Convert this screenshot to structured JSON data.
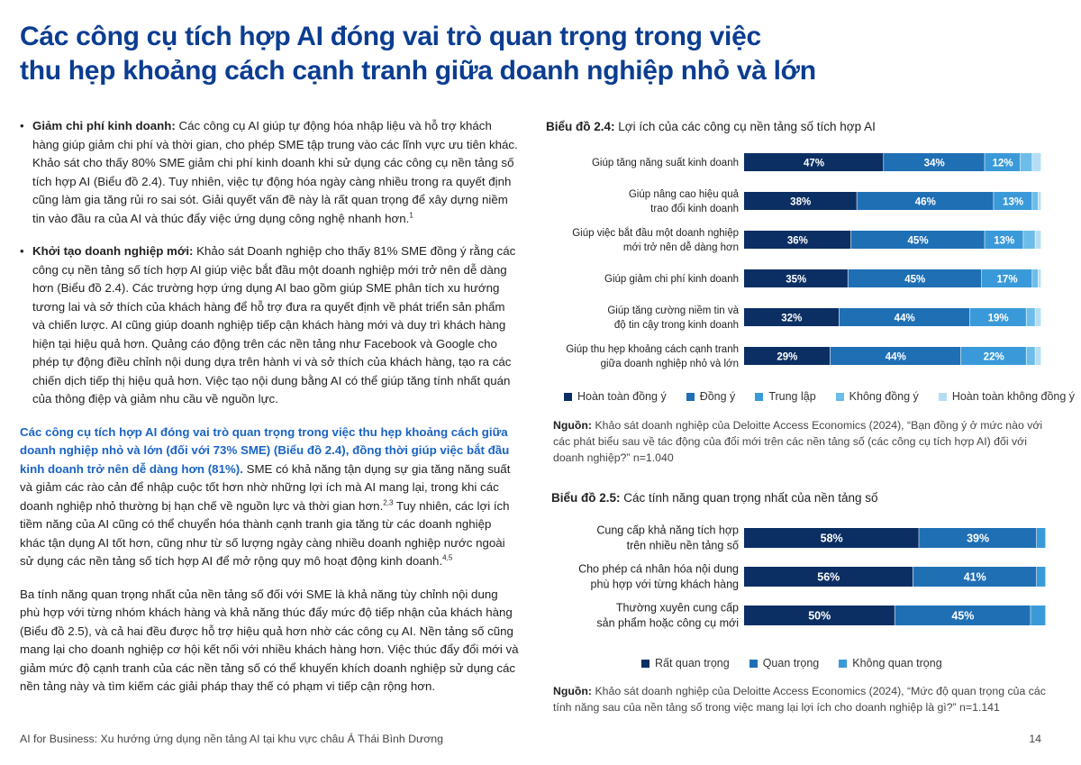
{
  "title": {
    "line1": "Các công cụ tích hợp AI đóng vai trò quan trọng trong việc",
    "line2": "thu hẹp khoảng cách cạnh tranh giữa doanh nghiệp nhỏ và lớn"
  },
  "left": {
    "b1_bold": "Giảm chi phí kinh doanh:",
    "b1_text": " Các công cụ AI giúp tự động hóa nhập liệu và hỗ trợ khách hàng giúp giảm chi phí và thời gian, cho phép SME tập trung vào các lĩnh vực ưu tiên khác. Khảo sát cho thấy 80% SME giảm chi phí kinh doanh khi sử dụng các công cụ nền tảng số tích hợp AI (Biểu đồ 2.4). Tuy nhiên, việc tự động hóa ngày càng nhiều trong ra quyết định cũng làm gia tăng rủi ro sai sót. Giải quyết vấn đề này là rất quan trọng để xây dựng niềm tin vào đầu ra của AI và thúc đẩy việc ứng dụng công nghệ nhanh hơn.",
    "b1_sup": "1",
    "b2_bold": "Khởi tạo doanh nghiệp mới:",
    "b2_text": " Khảo sát Doanh nghiệp cho thấy 81% SME đồng ý rằng các công cụ nền tảng số tích hợp AI giúp việc bắt đầu một doanh nghiệp mới trở nên dễ dàng hơn (Biểu đồ 2.4). Các trường hợp ứng dụng AI bao gồm giúp SME phân tích xu hướng tương lai và sở thích của khách hàng để hỗ trợ đưa ra quyết định về phát triển sản phẩm và chiến lược. AI cũng giúp doanh nghiệp tiếp cận khách hàng mới và duy trì khách hàng hiện tại hiệu quả hơn. Quảng cáo động trên các nền tảng như Facebook và Google cho phép tự động điều chỉnh nội dung dựa trên hành vi và sở thích của khách hàng, tạo ra các chiến dịch tiếp thị hiệu quả hơn. Việc tạo nội dung bằng AI có thể giúp tăng tính nhất quán của thông điệp và giảm nhu cầu về nguồn lực.",
    "p3_highlight": "Các công cụ tích hợp AI đóng vai trò quan trọng trong việc thu hẹp khoảng cách giữa doanh nghiệp nhỏ và lớn (đối với 73% SME) (Biểu đồ 2.4), đồng thời giúp việc bắt đầu kinh doanh trở nên dễ dàng hơn (81%).",
    "p3_text1": " SME có khả năng tận dụng sự gia tăng năng suất và giảm các rào cản để nhập cuộc tốt hơn nhờ những lợi ích mà AI mang lại, trong khi các doanh nghiệp nhỏ thường bị hạn chế về nguồn lực và thời gian hơn.",
    "p3_sup1": "2,3",
    "p3_text2": " Tuy nhiên, các lợi ích tiềm năng của AI cũng có thể chuyển hóa thành cạnh tranh gia tăng từ các doanh nghiệp khác tận dụng AI tốt hơn, cũng như từ số lượng ngày càng nhiều doanh nghiệp nước ngoài sử dụng các nền tảng số tích hợp AI để mở rộng quy mô hoạt động kinh doanh.",
    "p3_sup2": "4,5",
    "p4": "Ba tính năng quan trọng nhất của nền tảng số đối với SME là khả năng tùy chỉnh nội dung phù hợp với từng nhóm khách hàng và khả năng thúc đẩy mức độ tiếp nhận của khách hàng (Biểu đồ 2.5), và cả hai đều được hỗ trợ hiệu quả hơn nhờ các công cụ AI. Nền tảng số cũng mang lại cho doanh nghiệp cơ hội kết nối với nhiều khách hàng hơn. Việc thúc đẩy đổi mới và giảm mức độ cạnh tranh của các nền tảng số có thể khuyến khích doanh nghiệp sử dụng các nền tảng này và tìm kiếm các giải pháp thay thế có phạm vi tiếp cận rộng hơn."
  },
  "chart_data": [
    {
      "type": "bar",
      "orientation": "horizontal-stacked",
      "title_bold": "Biểu đồ 2.4:",
      "title": " Lợi ích của các công cụ nền tảng số tích hợp AI",
      "categories": [
        [
          "Giúp tăng năng suất kinh doanh"
        ],
        [
          "Giúp nâng cao hiệu quả",
          "trao đổi kinh doanh"
        ],
        [
          "Giúp việc bắt đầu một doanh nghiệp",
          "mới trở nên dễ dàng hơn"
        ],
        [
          "Giúp giảm chi phí kinh doanh"
        ],
        [
          "Giúp tăng cường niềm tin và",
          "độ tin cậy trong kinh doanh"
        ],
        [
          "Giúp thu hẹp khoảng cách cạnh tranh",
          "giữa doanh nghiệp nhỏ và lớn"
        ]
      ],
      "series": [
        {
          "name": "Hoàn toàn đồng ý",
          "color": "#0b2f63",
          "values": [
            47,
            38,
            36,
            35,
            32,
            29
          ]
        },
        {
          "name": "Đồng ý",
          "color": "#1f6fb5",
          "values": [
            34,
            46,
            45,
            45,
            44,
            44
          ]
        },
        {
          "name": "Trung lập",
          "color": "#3a9ad9",
          "values": [
            12,
            13,
            13,
            17,
            19,
            22
          ]
        },
        {
          "name": "Không đồng ý",
          "color": "#6cbde9",
          "values": [
            4,
            2,
            4,
            2,
            3,
            3
          ]
        },
        {
          "name": "Hoàn toàn không đồng ý",
          "color": "#b5def5",
          "values": [
            3,
            1,
            2,
            1,
            2,
            2
          ]
        }
      ],
      "labels_shown": 3,
      "xlim": [
        0,
        100
      ],
      "source_bold": "Nguồn:",
      "source": " Khảo sát doanh nghiệp của Deloitte Access Economics (2024), “Bạn đồng ý ở mức nào với các phát biểu sau về tác động của đổi mới trên các nền tảng số (các công cụ tích hợp AI) đối với doanh nghiệp?” n=1.040"
    },
    {
      "type": "bar",
      "orientation": "horizontal-stacked",
      "title_bold": "Biểu đồ 2.5:",
      "title": " Các tính năng quan trọng nhất của nền tảng số",
      "categories": [
        [
          "Cung cấp khả năng tích hợp",
          "trên nhiều nền tảng số"
        ],
        [
          "Cho phép cá nhân hóa nội dung",
          "phù hợp với từng khách hàng"
        ],
        [
          "Thường xuyên cung cấp",
          "sản phẩm hoặc công cụ mới"
        ]
      ],
      "series": [
        {
          "name": "Rất quan trọng",
          "color": "#0b2f63",
          "values": [
            58,
            56,
            50
          ]
        },
        {
          "name": "Quan trọng",
          "color": "#1f6fb5",
          "values": [
            39,
            41,
            45
          ]
        },
        {
          "name": "Không quan trọng",
          "color": "#3a9ad9",
          "values": [
            3,
            3,
            5
          ]
        }
      ],
      "labels_shown": 2,
      "xlim": [
        0,
        100
      ],
      "source_bold": "Nguồn:",
      "source": " Khảo sát doanh nghiệp của Deloitte Access Economics (2024), “Mức độ quan trọng của các tính năng sau của nền tảng số trong việc mang lại lợi ích cho doanh nghiệp là gì?” n=1.141"
    }
  ],
  "footer": {
    "text": "AI for Business: Xu hướng ứng dụng nền tảng AI tại khu vực châu Á Thái Bình Dương",
    "page": "14"
  }
}
